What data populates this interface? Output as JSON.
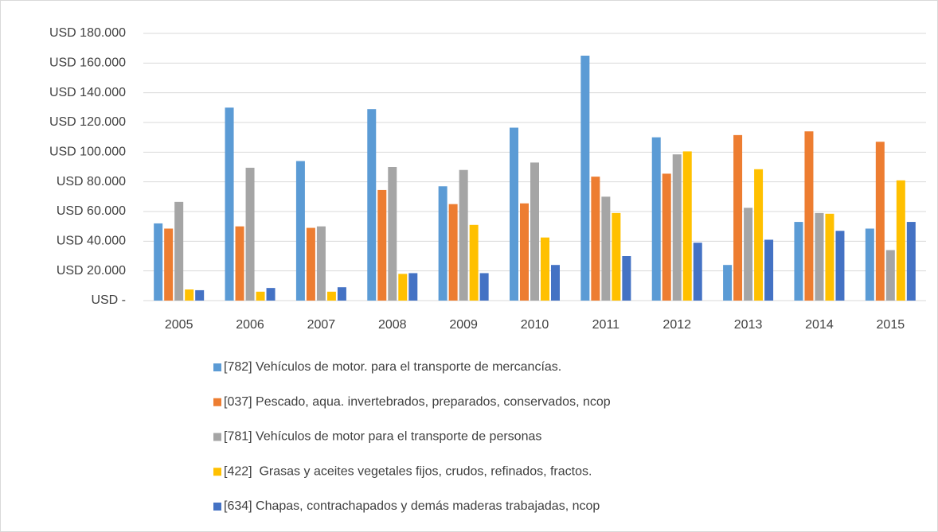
{
  "chart_data": {
    "type": "bar",
    "categories": [
      "2005",
      "2006",
      "2007",
      "2008",
      "2009",
      "2010",
      "2011",
      "2012",
      "2013",
      "2014",
      "2015"
    ],
    "series": [
      {
        "name": "[782] Vehículos de motor. para el transporte de mercancías.",
        "color": "#5b9bd5",
        "values": [
          52000,
          130000,
          94000,
          129000,
          77000,
          116500,
          165000,
          110000,
          24000,
          53000,
          48500
        ]
      },
      {
        "name": "[037] Pescado, aqua. invertebrados, preparados, conservados, ncop",
        "color": "#ed7d31",
        "values": [
          48500,
          50000,
          49000,
          74500,
          65000,
          65500,
          83500,
          85500,
          111500,
          114000,
          107000
        ]
      },
      {
        "name": "[781] Vehículos de motor para el transporte de personas",
        "color": "#a5a5a5",
        "values": [
          66500,
          89500,
          50000,
          90000,
          88000,
          93000,
          70000,
          98500,
          62500,
          59000,
          34000
        ]
      },
      {
        "name": "[422]  Grasas y aceites vegetales fijos, crudos, refinados, fractos.",
        "color": "#ffc000",
        "values": [
          7500,
          6000,
          6000,
          18000,
          51000,
          42500,
          59000,
          100500,
          88500,
          58500,
          81000
        ]
      },
      {
        "name": "[634] Chapas, contrachapados y demás maderas trabajadas, ncop",
        "color": "#4472c4",
        "values": [
          7000,
          8500,
          9000,
          18500,
          18500,
          24000,
          30000,
          39000,
          41000,
          47000,
          53000
        ]
      }
    ],
    "ylim": [
      0,
      180000
    ],
    "yticks": [
      {
        "value": 0,
        "label": "USD -"
      },
      {
        "value": 20000,
        "label": "USD 20.000"
      },
      {
        "value": 40000,
        "label": "USD 40.000"
      },
      {
        "value": 60000,
        "label": "USD 60.000"
      },
      {
        "value": 80000,
        "label": "USD 80.000"
      },
      {
        "value": 100000,
        "label": "USD 100.000"
      },
      {
        "value": 120000,
        "label": "USD 120.000"
      },
      {
        "value": 140000,
        "label": "USD 140.000"
      },
      {
        "value": 160000,
        "label": "USD 160.000"
      },
      {
        "value": 180000,
        "label": "USD 180.000"
      }
    ],
    "grid": true
  }
}
